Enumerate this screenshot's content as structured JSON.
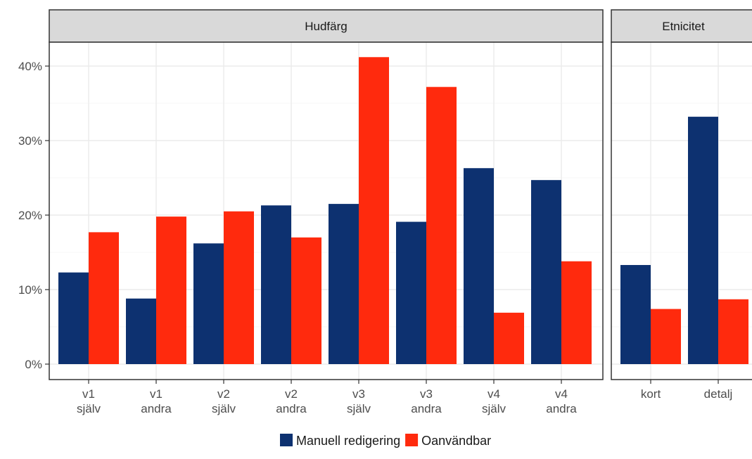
{
  "chart_data": {
    "type": "bar",
    "ylim": [
      0,
      0.45
    ],
    "y_ticks": [
      {
        "value": 0,
        "label": "0%"
      },
      {
        "value": 0.1,
        "label": "10%"
      },
      {
        "value": 0.2,
        "label": "20%"
      },
      {
        "value": 0.3,
        "label": "30%"
      },
      {
        "value": 0.4,
        "label": "40%"
      }
    ],
    "grid": true,
    "legend_position": "bottom",
    "series": [
      {
        "name": "Manuell redigering",
        "color": "#0d3170"
      },
      {
        "name": "Oanvändbar",
        "color": "#ff2a0d"
      }
    ],
    "panels": [
      {
        "strip_label": "Hudfärg",
        "categories": [
          [
            "v1",
            "själv"
          ],
          [
            "v1",
            "andra"
          ],
          [
            "v2",
            "själv"
          ],
          [
            "v2",
            "andra"
          ],
          [
            "v3",
            "själv"
          ],
          [
            "v3",
            "andra"
          ],
          [
            "v4",
            "själv"
          ],
          [
            "v4",
            "andra"
          ]
        ],
        "values": [
          [
            0.123,
            0.088,
            0.162,
            0.213,
            0.215,
            0.191,
            0.263,
            0.247
          ],
          [
            0.177,
            0.198,
            0.205,
            0.17,
            0.412,
            0.372,
            0.069,
            0.138
          ]
        ]
      },
      {
        "strip_label": "Etnicitet",
        "categories": [
          [
            "kort"
          ],
          [
            "detalj"
          ]
        ],
        "values": [
          [
            0.133,
            0.332
          ],
          [
            0.074,
            0.087
          ]
        ]
      }
    ]
  }
}
